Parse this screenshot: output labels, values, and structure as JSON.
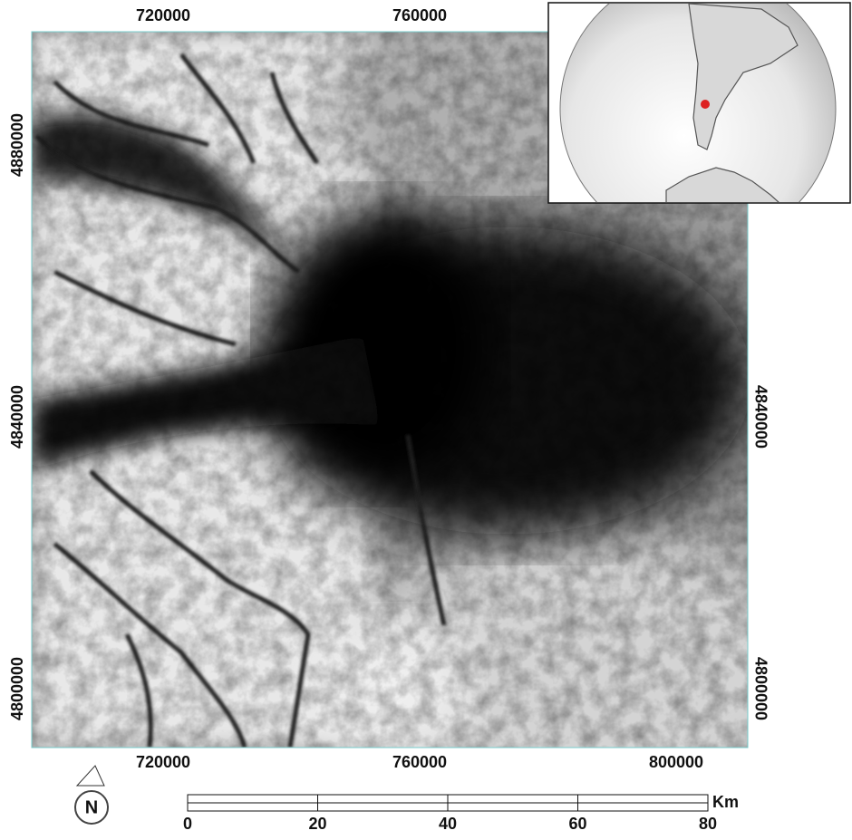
{
  "map": {
    "top_eastings": [
      720000,
      760000
    ],
    "bottom_eastings": [
      720000,
      760000,
      800000
    ],
    "left_northings": [
      4880000,
      4840000,
      4800000
    ],
    "right_northings": [
      4840000,
      4800000
    ],
    "north_arrow": "N",
    "scale_bar": {
      "ticks": [
        0,
        20,
        40,
        60,
        80
      ],
      "unit": "Km"
    }
  }
}
